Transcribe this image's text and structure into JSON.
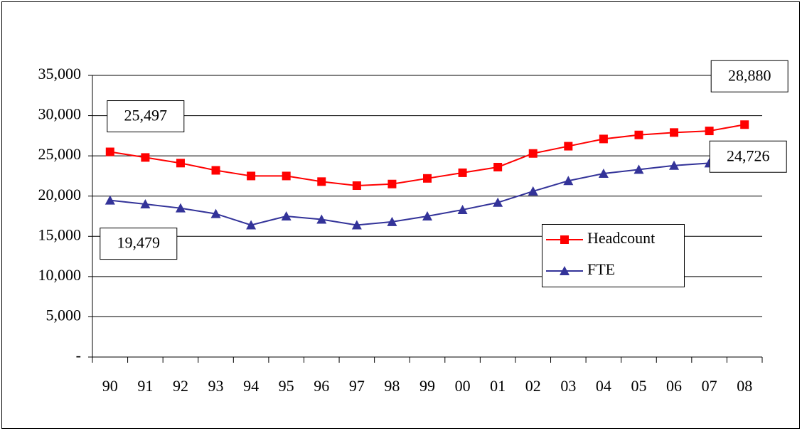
{
  "chart_data": {
    "type": "line",
    "categories": [
      "90",
      "91",
      "92",
      "93",
      "94",
      "95",
      "96",
      "97",
      "98",
      "99",
      "00",
      "01",
      "02",
      "03",
      "04",
      "05",
      "06",
      "07",
      "08"
    ],
    "series": [
      {
        "name": "Headcount",
        "color": "#ff0000",
        "marker": "square",
        "values": [
          25497,
          24800,
          24100,
          23200,
          22500,
          22500,
          21800,
          21300,
          21500,
          22200,
          22900,
          23600,
          25300,
          26200,
          27100,
          27600,
          27900,
          28100,
          28880
        ],
        "value_labels": [
          "25,497",
          null,
          null,
          null,
          null,
          null,
          null,
          null,
          null,
          null,
          null,
          null,
          null,
          null,
          null,
          null,
          null,
          null,
          "28,880"
        ]
      },
      {
        "name": "FTE",
        "color": "#333399",
        "marker": "triangle",
        "values": [
          19479,
          19000,
          18500,
          17800,
          16400,
          17500,
          17100,
          16400,
          16800,
          17500,
          18300,
          19200,
          20600,
          21900,
          22800,
          23300,
          23800,
          24100,
          24726
        ],
        "value_labels": [
          "19,479",
          null,
          null,
          null,
          null,
          null,
          null,
          null,
          null,
          null,
          null,
          null,
          null,
          null,
          null,
          null,
          null,
          null,
          "24,726"
        ]
      }
    ],
    "ylim": [
      0,
      35000
    ],
    "yticks": [
      {
        "value": 0,
        "label": "-"
      },
      {
        "value": 5000,
        "label": "5,000"
      },
      {
        "value": 10000,
        "label": "10,000"
      },
      {
        "value": 15000,
        "label": "15,000"
      },
      {
        "value": 20000,
        "label": "20,000"
      },
      {
        "value": 25000,
        "label": "25,000"
      },
      {
        "value": 30000,
        "label": "30,000"
      },
      {
        "value": 35000,
        "label": "35,000"
      }
    ],
    "grid": true,
    "legend": "right"
  }
}
